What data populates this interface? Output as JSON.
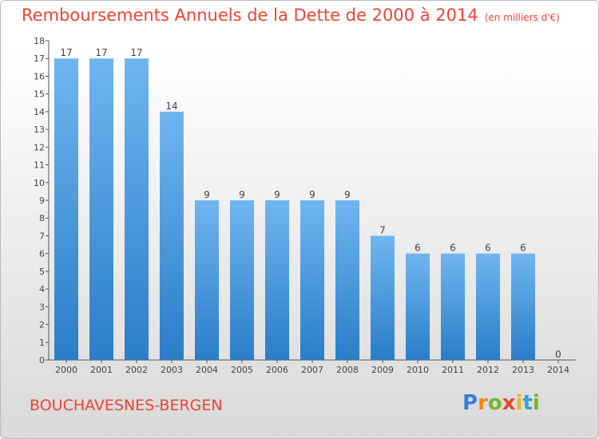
{
  "title": "Remboursements Annuels de la Dette de 2000 à 2014",
  "unit": "(en milliers d'€)",
  "commune": "BOUCHAVESNES-BERGEN",
  "logo": {
    "letters": [
      "P",
      "r",
      "o",
      "x",
      "i",
      "t",
      "i"
    ],
    "colors": [
      "#3a7fd5",
      "#f08a1c",
      "#7ab42c",
      "#e04b2b",
      "#f0b41c",
      "#3a9fd5",
      "#7ab42c"
    ]
  },
  "colors": {
    "bar_light": "#6fb6f0",
    "bar_dark": "#2a7dc8",
    "title": "#ee4433"
  },
  "chart_data": {
    "type": "bar",
    "categories": [
      "2000",
      "2001",
      "2002",
      "2003",
      "2004",
      "2005",
      "2006",
      "2007",
      "2008",
      "2009",
      "2010",
      "2011",
      "2012",
      "2013",
      "2014"
    ],
    "values": [
      17,
      17,
      17,
      14,
      9,
      9,
      9,
      9,
      9,
      7,
      6,
      6,
      6,
      6,
      0
    ],
    "title": "Remboursements Annuels de la Dette de 2000 à 2014",
    "ylim": [
      0,
      18
    ],
    "yticks": [
      0,
      1,
      2,
      3,
      4,
      5,
      6,
      7,
      8,
      9,
      10,
      11,
      12,
      13,
      14,
      15,
      16,
      17,
      18
    ],
    "grid": false,
    "legend": "none"
  }
}
